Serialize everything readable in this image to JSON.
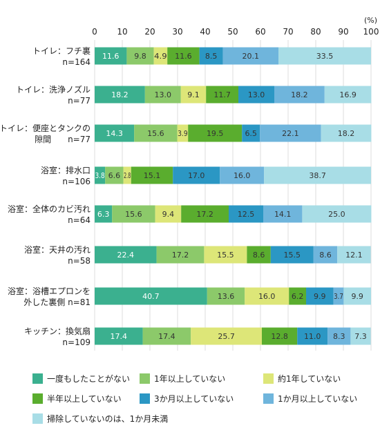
{
  "chart_data": {
    "type": "bar",
    "orientation": "horizontal",
    "stacked": true,
    "unit": "(%)",
    "xlim": [
      0,
      100
    ],
    "ticks": [
      "0",
      "10",
      "20",
      "30",
      "40",
      "50",
      "60",
      "70",
      "80",
      "90",
      "100"
    ],
    "grid": true,
    "legend_position": "bottom",
    "categories": [
      [
        "トイレ：フチ裏",
        "n=164"
      ],
      [
        "トイレ：洗浄ノズル",
        "n=77"
      ],
      [
        "トイレ：便座とタンクの",
        "隙間　　n=77"
      ],
      [
        "浴室：排水口",
        "n=106"
      ],
      [
        "浴室：全体のカビ汚れ",
        "n=64"
      ],
      [
        "浴室：天井の汚れ",
        "n=58"
      ],
      [
        "浴室：浴槽エプロンを",
        "外した裏側 n=81"
      ],
      [
        "キッチン：換気扇",
        "n=109"
      ]
    ],
    "series": [
      {
        "name": "一度もしたことがない",
        "color": "#3bb08f",
        "text_color": "#ffffff",
        "values": [
          11.6,
          18.2,
          14.3,
          3.8,
          6.3,
          22.4,
          40.7,
          17.4
        ]
      },
      {
        "name": "1年以上していない",
        "color": "#8cc96a",
        "text_color": "#333333",
        "values": [
          9.8,
          13.0,
          15.6,
          6.6,
          15.6,
          17.2,
          13.6,
          17.4
        ]
      },
      {
        "name": "約1年していない",
        "color": "#dde678",
        "text_color": "#333333",
        "values": [
          4.9,
          9.1,
          3.9,
          2.8,
          9.4,
          15.5,
          16.0,
          25.7
        ]
      },
      {
        "name": "半年以上していない",
        "color": "#5aad2e",
        "text_color": "#333333",
        "values": [
          11.6,
          11.7,
          19.5,
          15.1,
          17.2,
          8.6,
          6.2,
          12.8
        ]
      },
      {
        "name": "3か月以上していない",
        "color": "#2b97c4",
        "text_color": "#333333",
        "values": [
          8.5,
          13.0,
          6.5,
          17.0,
          12.5,
          15.5,
          9.9,
          11.0
        ]
      },
      {
        "name": "1か月以上していない",
        "color": "#6fb5dc",
        "text_color": "#333333",
        "values": [
          20.1,
          18.2,
          22.1,
          16.0,
          14.1,
          8.6,
          3.7,
          8.3
        ]
      },
      {
        "name": "掃除していないのは、1か月未満",
        "color": "#a8dde6",
        "text_color": "#333333",
        "values": [
          33.5,
          16.9,
          18.2,
          38.7,
          25.0,
          12.1,
          9.9,
          7.3
        ]
      }
    ]
  }
}
